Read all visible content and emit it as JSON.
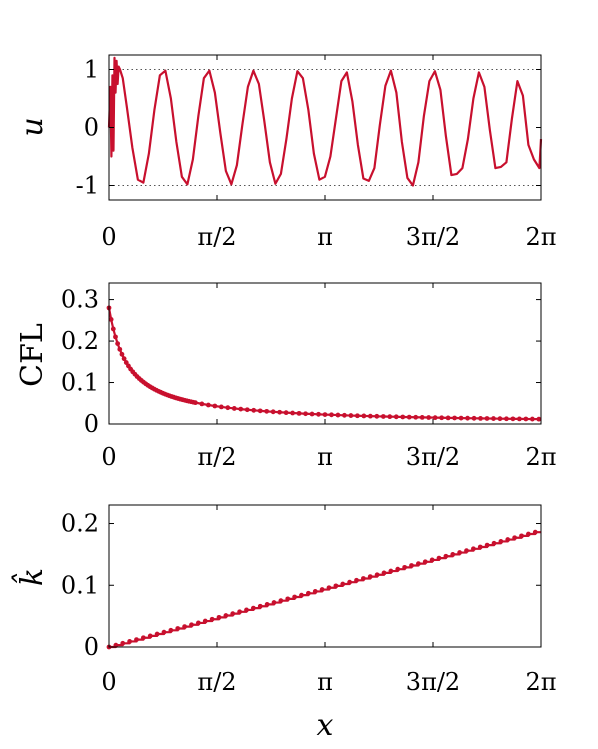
{
  "colors": {
    "series": "#c8102e",
    "axis": "#000000",
    "guide": "#555555"
  },
  "chart_data": [
    {
      "type": "line",
      "ylabel": "u",
      "xlim": [
        0,
        6.2832
      ],
      "ylim": [
        -1.25,
        1.25
      ],
      "xticks": [
        0,
        1.5708,
        3.1416,
        4.7124,
        6.2832
      ],
      "xtick_labels": [
        "0",
        "π/2",
        "π",
        "3π/2",
        "2π"
      ],
      "yticks": [
        -1,
        0,
        1
      ],
      "ytick_labels": [
        "-1",
        "0",
        "1"
      ],
      "guides": [
        1,
        -1
      ],
      "markers": false,
      "x": [
        0,
        0.02,
        0.035,
        0.05,
        0.065,
        0.08,
        0.095,
        0.11,
        0.125,
        0.14,
        0.16,
        0.2,
        0.26,
        0.34,
        0.42,
        0.5,
        0.58,
        0.66,
        0.74,
        0.82,
        0.9,
        0.98,
        1.06,
        1.14,
        1.22,
        1.3,
        1.38,
        1.46,
        1.54,
        1.62,
        1.7,
        1.78,
        1.86,
        1.94,
        2.02,
        2.1,
        2.18,
        2.26,
        2.34,
        2.42,
        2.5,
        2.58,
        2.66,
        2.74,
        2.82,
        2.9,
        2.98,
        3.06,
        3.14,
        3.22,
        3.3,
        3.38,
        3.46,
        3.54,
        3.62,
        3.7,
        3.78,
        3.86,
        3.94,
        4.02,
        4.1,
        4.18,
        4.26,
        4.34,
        4.42,
        4.5,
        4.58,
        4.66,
        4.74,
        4.82,
        4.9,
        4.98,
        5.06,
        5.14,
        5.22,
        5.3,
        5.38,
        5.46,
        5.54,
        5.62,
        5.7,
        5.78,
        5.86,
        5.94,
        6.02,
        6.1,
        6.18,
        6.26,
        6.2832
      ],
      "y": [
        0,
        0.7,
        -0.5,
        0.9,
        -0.4,
        1.2,
        0.6,
        1.15,
        0.75,
        1.05,
        1.0,
        0.85,
        0.35,
        -0.35,
        -0.9,
        -0.95,
        -0.45,
        0.3,
        0.9,
        0.98,
        0.5,
        -0.25,
        -0.85,
        -0.98,
        -0.55,
        0.2,
        0.85,
        0.98,
        0.6,
        -0.1,
        -0.75,
        -0.98,
        -0.65,
        0.05,
        0.7,
        0.98,
        0.75,
        0.1,
        -0.6,
        -0.97,
        -0.8,
        -0.2,
        0.5,
        0.97,
        0.85,
        0.3,
        -0.45,
        -0.9,
        -0.85,
        -0.5,
        0.15,
        0.8,
        0.95,
        0.45,
        -0.3,
        -0.88,
        -0.92,
        -0.7,
        0.05,
        0.72,
        0.98,
        0.6,
        -0.25,
        -0.87,
        -1.0,
        -0.6,
        0.2,
        0.8,
        0.97,
        0.65,
        -0.15,
        -0.82,
        -0.8,
        -0.7,
        -0.2,
        0.5,
        0.95,
        0.7,
        -0.05,
        -0.7,
        -0.68,
        -0.6,
        0.15,
        0.8,
        0.55,
        -0.3,
        -0.55,
        -0.7,
        -0.2
      ]
    },
    {
      "type": "line",
      "ylabel": "CFL",
      "xlim": [
        0,
        6.2832
      ],
      "ylim": [
        0,
        0.34
      ],
      "xticks": [
        0,
        1.5708,
        3.1416,
        4.7124,
        6.2832
      ],
      "xtick_labels": [
        "0",
        "π/2",
        "π",
        "3π/2",
        "2π"
      ],
      "yticks": [
        0,
        0.1,
        0.2,
        0.3
      ],
      "ytick_labels": [
        "0",
        "0.1",
        "0.2",
        "0.3"
      ],
      "markers": true,
      "x": [
        0.0,
        0.0314,
        0.0628,
        0.0942,
        0.1257,
        0.1571,
        0.1885,
        0.2199,
        0.2513,
        0.2827,
        0.3142,
        0.3456,
        0.377,
        0.4084,
        0.4398,
        0.4712,
        0.5027,
        0.5341,
        0.5655,
        0.5969,
        0.6283,
        0.6597,
        0.6912,
        0.7226,
        0.754,
        0.7854,
        0.8168,
        0.8482,
        0.8796,
        0.9111,
        0.9425,
        0.9739,
        1.0053,
        1.0367,
        1.0681,
        1.0996,
        1.131,
        1.1624,
        1.1938,
        1.2252,
        1.2566,
        1.3509,
        1.4451,
        1.5394,
        1.6336,
        1.7279,
        1.8221,
        1.9164,
        2.0106,
        2.1049,
        2.1991,
        2.2934,
        2.3876,
        2.4819,
        2.5761,
        2.6704,
        2.7646,
        2.8588,
        2.9531,
        3.0473,
        3.1416,
        3.2358,
        3.3301,
        3.4243,
        3.5186,
        3.6128,
        3.7071,
        3.8013,
        3.8956,
        3.9898,
        4.0841,
        4.1783,
        4.2726,
        4.3668,
        4.4611,
        4.5553,
        4.6496,
        4.7438,
        4.8381,
        4.9323,
        5.0265,
        5.1208,
        5.215,
        5.3093,
        5.4035,
        5.4978,
        5.592,
        5.6863,
        5.7805,
        5.8748,
        5.969,
        6.0633,
        6.1575,
        6.2518
      ],
      "y": [
        0.28,
        0.2521,
        0.2292,
        0.2101,
        0.1939,
        0.18,
        0.168,
        0.1575,
        0.1482,
        0.14,
        0.1326,
        0.126,
        0.12,
        0.1145,
        0.1096,
        0.105,
        0.1008,
        0.0969,
        0.0933,
        0.09,
        0.0869,
        0.084,
        0.0813,
        0.0787,
        0.0764,
        0.0741,
        0.072,
        0.07,
        0.0681,
        0.0663,
        0.0646,
        0.063,
        0.0615,
        0.06,
        0.0586,
        0.0573,
        0.056,
        0.0548,
        0.0537,
        0.0525,
        0.0515,
        0.0485,
        0.0458,
        0.0434,
        0.0412,
        0.0393,
        0.0375,
        0.0359,
        0.0344,
        0.033,
        0.0317,
        0.0305,
        0.0294,
        0.0284,
        0.0274,
        0.0265,
        0.0256,
        0.0248,
        0.0241,
        0.0234,
        0.0227,
        0.0221,
        0.0215,
        0.0209,
        0.0204,
        0.0199,
        0.0194,
        0.0189,
        0.0185,
        0.0181,
        0.0177,
        0.0173,
        0.0169,
        0.0166,
        0.0162,
        0.0159,
        0.0156,
        0.0153,
        0.015,
        0.0147,
        0.0145,
        0.0142,
        0.014,
        0.0137,
        0.0135,
        0.0133,
        0.0131,
        0.0128,
        0.0126,
        0.0124,
        0.0123,
        0.0121,
        0.0119,
        0.0117
      ]
    },
    {
      "type": "line",
      "ylabel": "k̂",
      "xlim": [
        0,
        6.2832
      ],
      "ylim": [
        0,
        0.23
      ],
      "xticks": [
        0,
        1.5708,
        3.1416,
        4.7124,
        6.2832
      ],
      "xtick_labels": [
        "0",
        "π/2",
        "π",
        "3π/2",
        "2π"
      ],
      "yticks": [
        0,
        0.1,
        0.2
      ],
      "ytick_labels": [
        "0",
        "0.1",
        "0.2"
      ],
      "markers": true,
      "step": true,
      "x": [
        0,
        0.1,
        0.2,
        0.3,
        0.4,
        0.5,
        0.6,
        0.7,
        0.8,
        0.9,
        1.0,
        1.1,
        1.2,
        1.3,
        1.4,
        1.5,
        1.6,
        1.7,
        1.8,
        1.9,
        2.0,
        2.1,
        2.2,
        2.3,
        2.4,
        2.5,
        2.6,
        2.7,
        2.8,
        2.9,
        3.0,
        3.1,
        3.2,
        3.3,
        3.4,
        3.5,
        3.6,
        3.7,
        3.8,
        3.9,
        4.0,
        4.1,
        4.2,
        4.3,
        4.4,
        4.5,
        4.6,
        4.7,
        4.8,
        4.9,
        5.0,
        5.1,
        5.2,
        5.3,
        5.4,
        5.5,
        5.6,
        5.7,
        5.8,
        5.9,
        6.0,
        6.1,
        6.2
      ],
      "y": [
        0.0,
        0.003,
        0.006,
        0.009,
        0.012,
        0.015,
        0.018,
        0.021,
        0.024,
        0.027,
        0.03,
        0.033,
        0.036,
        0.039,
        0.042,
        0.045,
        0.048,
        0.051,
        0.054,
        0.057,
        0.06,
        0.063,
        0.066,
        0.069,
        0.072,
        0.075,
        0.078,
        0.081,
        0.084,
        0.087,
        0.09,
        0.093,
        0.096,
        0.099,
        0.102,
        0.105,
        0.108,
        0.111,
        0.114,
        0.117,
        0.12,
        0.123,
        0.126,
        0.129,
        0.132,
        0.135,
        0.138,
        0.141,
        0.144,
        0.147,
        0.15,
        0.153,
        0.156,
        0.159,
        0.162,
        0.165,
        0.168,
        0.171,
        0.174,
        0.177,
        0.18,
        0.183,
        0.186
      ]
    }
  ],
  "xlabel": "x"
}
